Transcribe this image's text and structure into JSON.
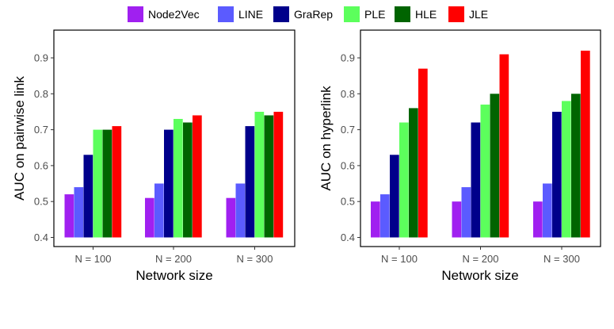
{
  "legend": [
    {
      "name": "Node2Vec",
      "color": "#A020F0"
    },
    {
      "name": "LINE",
      "color": "#5B5BFF"
    },
    {
      "name": "GraRep",
      "color": "#00008B"
    },
    {
      "name": "PLE",
      "color": "#5CFF5C"
    },
    {
      "name": "HLE",
      "color": "#006400"
    },
    {
      "name": "JLE",
      "color": "#FF0000"
    }
  ],
  "chart_data": [
    {
      "type": "bar",
      "title": "",
      "xlabel": "Network size",
      "ylabel": "AUC on pairwise link",
      "categories": [
        "N = 100",
        "N = 200",
        "N = 300"
      ],
      "ylim": [
        0.4,
        0.95
      ],
      "yticks": [
        "0.4",
        "0.5",
        "0.6",
        "0.7",
        "0.8",
        "0.9"
      ],
      "series": [
        {
          "name": "Node2Vec",
          "values": [
            0.52,
            0.51,
            0.51
          ]
        },
        {
          "name": "LINE",
          "values": [
            0.54,
            0.55,
            0.55
          ]
        },
        {
          "name": "GraRep",
          "values": [
            0.63,
            0.7,
            0.71
          ]
        },
        {
          "name": "PLE",
          "values": [
            0.7,
            0.73,
            0.75
          ]
        },
        {
          "name": "HLE",
          "values": [
            0.7,
            0.72,
            0.74
          ]
        },
        {
          "name": "JLE",
          "values": [
            0.71,
            0.74,
            0.75
          ]
        }
      ]
    },
    {
      "type": "bar",
      "title": "",
      "xlabel": "Network size",
      "ylabel": "AUC on hyperlink",
      "categories": [
        "N = 100",
        "N = 200",
        "N = 300"
      ],
      "ylim": [
        0.4,
        0.95
      ],
      "yticks": [
        "0.4",
        "0.5",
        "0.6",
        "0.7",
        "0.8",
        "0.9"
      ],
      "series": [
        {
          "name": "Node2Vec",
          "values": [
            0.5,
            0.5,
            0.5
          ]
        },
        {
          "name": "LINE",
          "values": [
            0.52,
            0.54,
            0.55
          ]
        },
        {
          "name": "GraRep",
          "values": [
            0.63,
            0.72,
            0.75
          ]
        },
        {
          "name": "PLE",
          "values": [
            0.72,
            0.77,
            0.78
          ]
        },
        {
          "name": "HLE",
          "values": [
            0.76,
            0.8,
            0.8
          ]
        },
        {
          "name": "JLE",
          "values": [
            0.87,
            0.91,
            0.92
          ]
        }
      ]
    }
  ]
}
